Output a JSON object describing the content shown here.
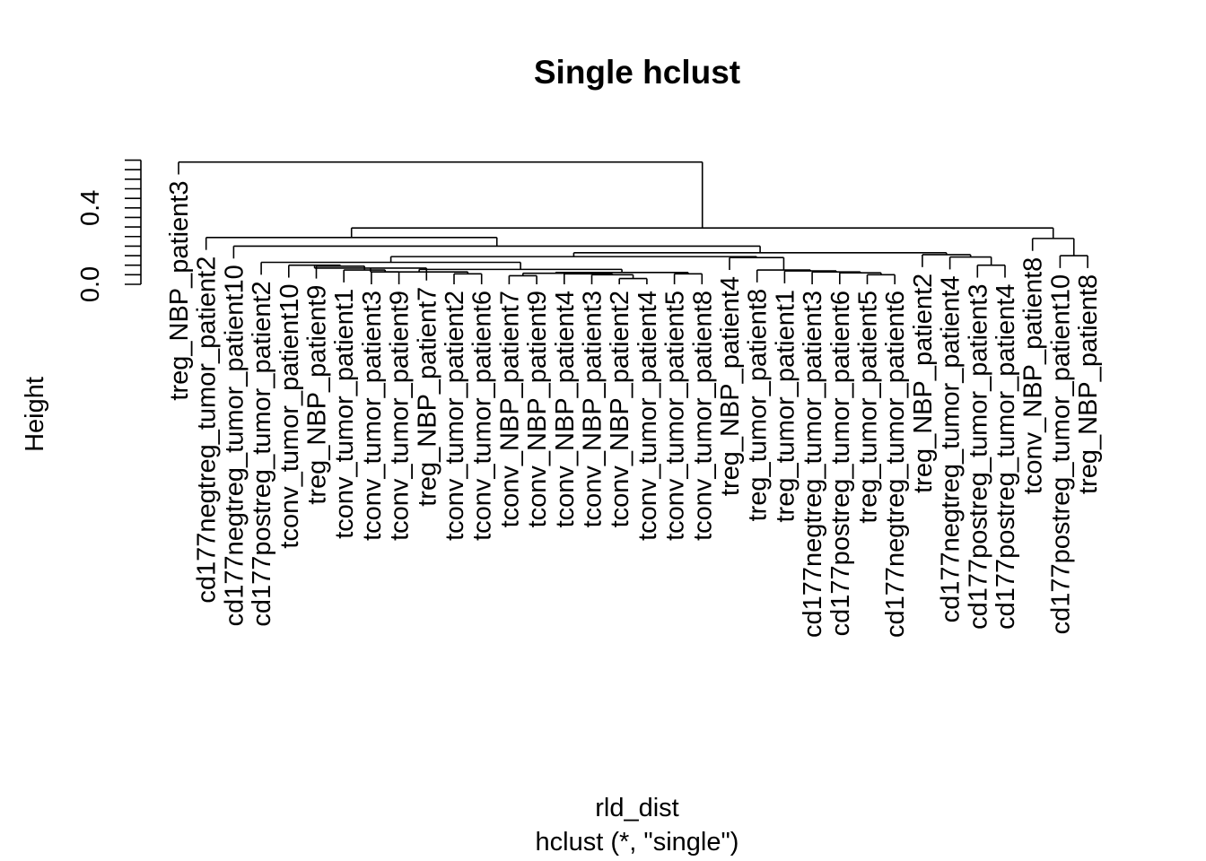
{
  "chart_data": {
    "type": "dendrogram",
    "title": "Single hclust",
    "xlabel": "rld_dist",
    "sub": "hclust (*, \"single\")",
    "ylabel": "Height",
    "ylim": [
      0,
      0.65
    ],
    "yticks": [
      0.0,
      0.4
    ],
    "ytick_labels": [
      "0.0",
      "0.4"
    ],
    "leaves": [
      "treg_NBP_patient3",
      "cd177negtreg_tumor_patient2",
      "cd177negtreg_tumor_patient10",
      "cd177postreg_tumor_patient2",
      "tconv_tumor_patient10",
      "treg_NBP_patient9",
      "tconv_tumor_patient1",
      "tconv_tumor_patient3",
      "tconv_tumor_patient9",
      "treg_NBP_patient7",
      "tconv_tumor_patient2",
      "tconv_tumor_patient6",
      "tconv_NBP_patient7",
      "tconv_NBP_patient9",
      "tconv_NBP_patient4",
      "tconv_NBP_patient3",
      "tconv_NBP_patient2",
      "tconv_tumor_patient4",
      "tconv_tumor_patient5",
      "tconv_tumor_patient8",
      "treg_NBP_patient4",
      "treg_tumor_patient8",
      "treg_tumor_patient1",
      "cd177negtreg_tumor_patient3",
      "cd177postreg_tumor_patient6",
      "treg_tumor_patient5",
      "cd177negtreg_tumor_patient6",
      "treg_NBP_patient2",
      "cd177negtreg_tumor_patient4",
      "cd177postreg_tumor_patient3",
      "cd177postreg_tumor_patient4",
      "tconv_NBP_patient8",
      "cd177postreg_tumor_patient10",
      "treg_NBP_patient8"
    ],
    "merges": [
      {
        "id": "c1",
        "left": "L16",
        "right": "L17",
        "height": 0.03
      },
      {
        "id": "c2",
        "left": "L15",
        "right": "c1",
        "height": 0.05
      },
      {
        "id": "c3",
        "left": "L14",
        "right": "c2",
        "height": 0.055
      },
      {
        "id": "c4",
        "left": "L12",
        "right": "L13",
        "height": 0.045
      },
      {
        "id": "c5",
        "left": "c4",
        "right": "c3",
        "height": 0.058
      },
      {
        "id": "c6",
        "left": "L18",
        "right": "L19",
        "height": 0.055
      },
      {
        "id": "c7",
        "left": "c5",
        "right": "c6",
        "height": 0.062
      },
      {
        "id": "c8",
        "left": "L10",
        "right": "L11",
        "height": 0.055
      },
      {
        "id": "c9",
        "left": "L7",
        "right": "L8",
        "height": 0.065
      },
      {
        "id": "c10",
        "left": "L6",
        "right": "c9",
        "height": 0.075
      },
      {
        "id": "c11",
        "left": "L5",
        "right": "c10",
        "height": 0.095
      },
      {
        "id": "c12",
        "left": "L4",
        "right": "c11",
        "height": 0.1
      },
      {
        "id": "c13",
        "left": "c12",
        "right": "L9",
        "height": 0.085
      },
      {
        "id": "c14",
        "left": "c13",
        "right": "c8",
        "height": 0.065
      },
      {
        "id": "c15",
        "left": "c14",
        "right": "c7",
        "height": 0.078
      },
      {
        "id": "c16",
        "left": "L3",
        "right": "c15",
        "height": 0.115
      },
      {
        "id": "c17",
        "left": "L25",
        "right": "L26",
        "height": 0.05
      },
      {
        "id": "c18",
        "left": "L24",
        "right": "c17",
        "height": 0.06
      },
      {
        "id": "c19",
        "left": "L23",
        "right": "c18",
        "height": 0.065
      },
      {
        "id": "c20",
        "left": "L22",
        "right": "c19",
        "height": 0.07
      },
      {
        "id": "c21",
        "left": "L21",
        "right": "c20",
        "height": 0.075
      },
      {
        "id": "c22",
        "left": "L20",
        "right": "c21",
        "height": 0.14
      },
      {
        "id": "c23",
        "left": "c16",
        "right": "c22",
        "height": 0.145
      },
      {
        "id": "c24",
        "left": "L29",
        "right": "L30",
        "height": 0.1
      },
      {
        "id": "c25",
        "left": "L28",
        "right": "c24",
        "height": 0.143
      },
      {
        "id": "c26",
        "left": "L27",
        "right": "c25",
        "height": 0.155
      },
      {
        "id": "c27",
        "left": "c23",
        "right": "c26",
        "height": 0.165
      },
      {
        "id": "c28",
        "left": "L2",
        "right": "c27",
        "height": 0.2
      },
      {
        "id": "c29",
        "left": "L1",
        "right": "c28",
        "height": 0.245
      },
      {
        "id": "c30",
        "left": "L32",
        "right": "L33",
        "height": 0.15
      },
      {
        "id": "c31",
        "left": "L31",
        "right": "c30",
        "height": 0.24
      },
      {
        "id": "c32",
        "left": "c29",
        "right": "c31",
        "height": 0.295
      },
      {
        "id": "c33",
        "left": "L0",
        "right": "c32",
        "height": 0.64
      }
    ]
  }
}
